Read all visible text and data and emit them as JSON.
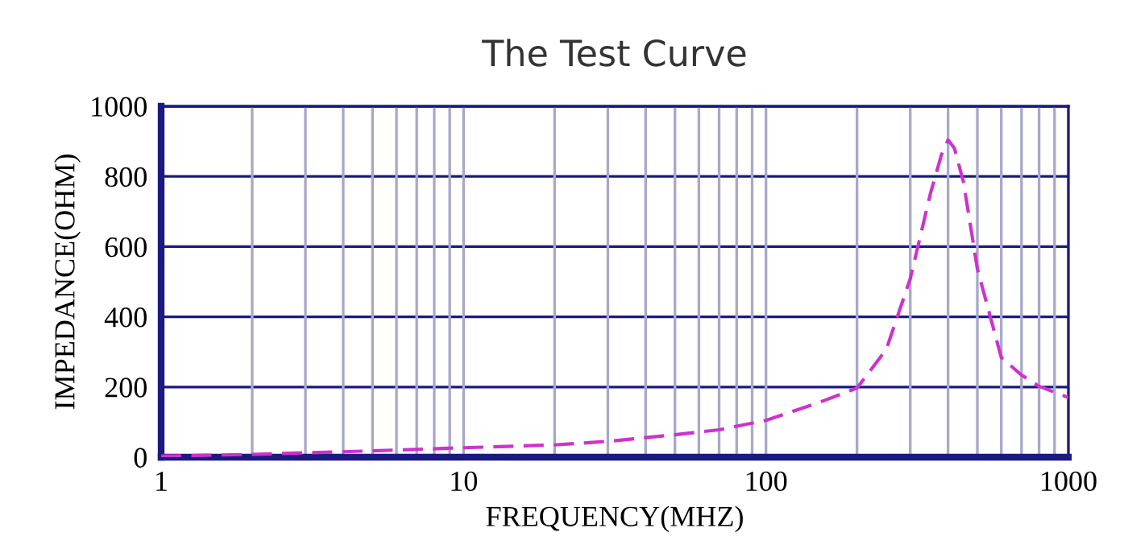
{
  "chart_data": {
    "type": "line",
    "title": "The Test Curve",
    "xlabel": "FREQUENCY(MHZ)",
    "ylabel": "IMPEDANCE(OHM)",
    "log": "x",
    "xlim": [
      1,
      1000
    ],
    "xticks": [
      1,
      10,
      100,
      1000
    ],
    "ylim": [
      0,
      1000
    ],
    "yticks": [
      0,
      200,
      400,
      600,
      800,
      1000
    ],
    "grid": true,
    "line_style": "dashed",
    "marker": "none",
    "series": [
      {
        "color": "#cc33cc",
        "x": [
          1,
          2,
          5,
          10,
          20,
          30,
          50,
          70,
          100,
          150,
          200,
          250,
          300,
          350,
          380,
          400,
          420,
          450,
          500,
          600,
          700,
          800,
          1000
        ],
        "values": [
          3,
          8,
          18,
          27,
          35,
          45,
          64,
          78,
          105,
          156,
          197,
          307,
          509,
          752,
          860,
          904,
          880,
          784,
          537,
          284,
          234,
          202,
          170
        ]
      }
    ]
  }
}
